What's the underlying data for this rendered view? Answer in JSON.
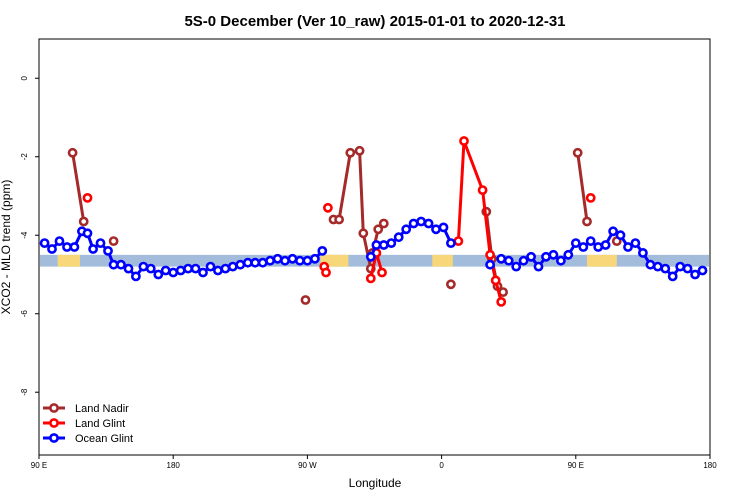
{
  "chart_data": {
    "type": "line",
    "title": "5S-0 December (Ver 10_raw)   2015-01-01 to 2020-12-31",
    "xlabel": "Longitude",
    "ylabel": "XCO2 - MLO trend (ppm)",
    "xlim": [
      90,
      450
    ],
    "ylim": [
      -9.6,
      1.0
    ],
    "x_ticks": [
      {
        "value": 90,
        "label": "90 E"
      },
      {
        "value": 162,
        "label": "180"
      },
      {
        "value": 234,
        "label": "90 W"
      },
      {
        "value": 306,
        "label": "0"
      },
      {
        "value": 378,
        "label": "90 E"
      },
      {
        "value": 450,
        "label": "180"
      }
    ],
    "y_ticks": [
      {
        "value": 0,
        "label": "0"
      },
      {
        "value": -2,
        "label": "-2"
      },
      {
        "value": -4,
        "label": "-4"
      },
      {
        "value": -6,
        "label": "-6"
      },
      {
        "value": -8,
        "label": "-8"
      }
    ],
    "grid": false,
    "legend_position": "bottom-left",
    "band": {
      "y_min": -4.8,
      "y_max": -4.5,
      "color": "#a3bcdc",
      "land_color": "#f7d779"
    },
    "land_segments": [
      [
        100,
        112
      ],
      [
        241,
        256
      ],
      [
        301,
        312
      ],
      [
        384,
        400
      ]
    ],
    "series": [
      {
        "name": "Land Nadir",
        "color": "#a52a2a",
        "segments": [
          [
            [
              108,
              -1.9
            ],
            [
              114,
              -3.65
            ]
          ],
          [
            [
              233,
              -5.65
            ]
          ],
          [
            [
              248,
              -3.6
            ],
            [
              251,
              -3.6
            ],
            [
              257,
              -1.9
            ],
            [
              262,
              -1.85
            ],
            [
              264,
              -3.95
            ],
            [
              268,
              -4.85
            ]
          ],
          [
            [
              269,
              -4.45
            ],
            [
              272,
              -3.85
            ],
            [
              275,
              -3.7
            ]
          ],
          [
            [
              311,
              -5.25
            ]
          ],
          [
            [
              330,
              -3.4
            ],
            [
              333,
              -4.6
            ],
            [
              336,
              -5.3
            ],
            [
              339,
              -5.45
            ]
          ],
          [
            [
              379,
              -1.9
            ],
            [
              384,
              -3.65
            ]
          ],
          [
            [
              130,
              -4.15
            ]
          ],
          [
            [
              400,
              -4.15
            ]
          ]
        ]
      },
      {
        "name": "Land Glint",
        "color": "#ff0000",
        "segments": [
          [
            [
              116,
              -3.05
            ]
          ],
          [
            [
              243,
              -4.8
            ],
            [
              244,
              -4.95
            ]
          ],
          [
            [
              245,
              -3.3
            ]
          ],
          [
            [
              268,
              -5.1
            ],
            [
              271,
              -4.45
            ],
            [
              274,
              -4.95
            ]
          ],
          [
            [
              315,
              -4.15
            ],
            [
              318,
              -1.6
            ],
            [
              328,
              -2.85
            ],
            [
              332,
              -4.5
            ],
            [
              335,
              -5.15
            ],
            [
              338,
              -5.7
            ]
          ],
          [
            [
              386,
              -3.05
            ]
          ]
        ]
      },
      {
        "name": "Ocean Glint",
        "color": "#0000ff",
        "segments": [
          [
            [
              93,
              -4.2
            ],
            [
              97,
              -4.35
            ],
            [
              101,
              -4.15
            ],
            [
              105,
              -4.3
            ],
            [
              109,
              -4.3
            ],
            [
              113,
              -3.9
            ],
            [
              116,
              -3.95
            ],
            [
              119,
              -4.35
            ],
            [
              123,
              -4.2
            ],
            [
              127,
              -4.4
            ],
            [
              130,
              -4.75
            ],
            [
              134,
              -4.75
            ],
            [
              138,
              -4.85
            ],
            [
              142,
              -5.05
            ],
            [
              146,
              -4.8
            ],
            [
              150,
              -4.85
            ],
            [
              154,
              -5.0
            ],
            [
              158,
              -4.9
            ],
            [
              162,
              -4.95
            ],
            [
              166,
              -4.9
            ],
            [
              170,
              -4.85
            ],
            [
              174,
              -4.85
            ],
            [
              178,
              -4.95
            ],
            [
              182,
              -4.8
            ],
            [
              186,
              -4.9
            ],
            [
              190,
              -4.85
            ],
            [
              194,
              -4.8
            ],
            [
              198,
              -4.75
            ],
            [
              202,
              -4.7
            ],
            [
              206,
              -4.7
            ],
            [
              210,
              -4.7
            ],
            [
              214,
              -4.65
            ],
            [
              218,
              -4.6
            ],
            [
              222,
              -4.65
            ],
            [
              226,
              -4.6
            ],
            [
              230,
              -4.65
            ],
            [
              234,
              -4.65
            ],
            [
              238,
              -4.6
            ],
            [
              242,
              -4.4
            ]
          ],
          [
            [
              268,
              -4.55
            ],
            [
              271,
              -4.25
            ],
            [
              275,
              -4.25
            ],
            [
              279,
              -4.2
            ],
            [
              283,
              -4.05
            ],
            [
              287,
              -3.85
            ],
            [
              291,
              -3.7
            ],
            [
              295,
              -3.65
            ],
            [
              299,
              -3.7
            ],
            [
              303,
              -3.85
            ],
            [
              307,
              -3.8
            ],
            [
              311,
              -4.2
            ]
          ],
          [
            [
              332,
              -4.75
            ]
          ],
          [
            [
              338,
              -4.6
            ],
            [
              342,
              -4.65
            ],
            [
              346,
              -4.8
            ],
            [
              350,
              -4.65
            ],
            [
              354,
              -4.55
            ],
            [
              358,
              -4.8
            ],
            [
              362,
              -4.55
            ],
            [
              366,
              -4.5
            ],
            [
              370,
              -4.65
            ],
            [
              374,
              -4.5
            ],
            [
              378,
              -4.2
            ],
            [
              382,
              -4.3
            ],
            [
              386,
              -4.15
            ],
            [
              390,
              -4.3
            ],
            [
              394,
              -4.25
            ],
            [
              398,
              -3.9
            ],
            [
              402,
              -4.0
            ],
            [
              406,
              -4.3
            ],
            [
              410,
              -4.2
            ],
            [
              414,
              -4.45
            ],
            [
              418,
              -4.75
            ],
            [
              422,
              -4.8
            ],
            [
              426,
              -4.85
            ],
            [
              430,
              -5.05
            ],
            [
              434,
              -4.8
            ],
            [
              438,
              -4.85
            ],
            [
              442,
              -5.0
            ],
            [
              446,
              -4.9
            ]
          ]
        ]
      }
    ]
  }
}
